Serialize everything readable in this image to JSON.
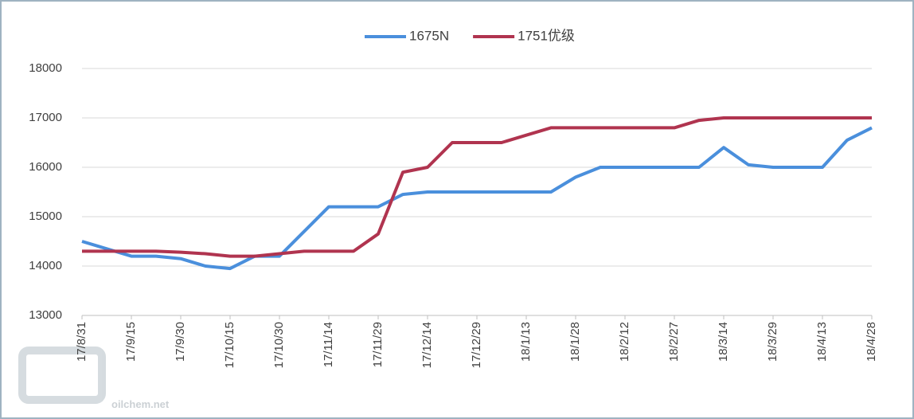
{
  "chart_data": {
    "type": "line",
    "categories": [
      "17/8/31",
      null,
      "17/9/15",
      null,
      "17/9/30",
      null,
      "17/10/15",
      null,
      "17/10/30",
      null,
      "17/11/14",
      null,
      "17/11/29",
      null,
      "17/12/14",
      null,
      "17/12/29",
      null,
      "18/1/13",
      null,
      "18/1/28",
      null,
      "18/2/12",
      null,
      "18/2/27",
      null,
      "18/3/14",
      null,
      "18/3/29",
      null,
      "18/4/13",
      null,
      "18/4/28"
    ],
    "series": [
      {
        "name": "1675N",
        "color": "#4a8fdc",
        "values": [
          14500,
          14350,
          14200,
          14200,
          14150,
          14000,
          13950,
          14200,
          14200,
          14700,
          15200,
          15200,
          15200,
          15450,
          15500,
          15500,
          15500,
          15500,
          15500,
          15500,
          15800,
          16000,
          16000,
          16000,
          16000,
          16000,
          16400,
          16050,
          16000,
          16000,
          16000,
          16550,
          16800
        ]
      },
      {
        "name": "1751优级",
        "color": "#b0344f",
        "values": [
          14300,
          14300,
          14300,
          14300,
          14280,
          14250,
          14200,
          14200,
          14250,
          14300,
          14300,
          14300,
          14650,
          15900,
          16000,
          16500,
          16500,
          16500,
          16650,
          16800,
          16800,
          16800,
          16800,
          16800,
          16800,
          16950,
          17000,
          17000,
          17000,
          17000,
          17000,
          17000,
          17000
        ]
      }
    ],
    "ylim": [
      13000,
      18000
    ],
    "yticks": [
      13000,
      14000,
      15000,
      16000,
      17000,
      18000
    ],
    "grid": true,
    "legend": "top",
    "watermark": "oilchem.net"
  }
}
